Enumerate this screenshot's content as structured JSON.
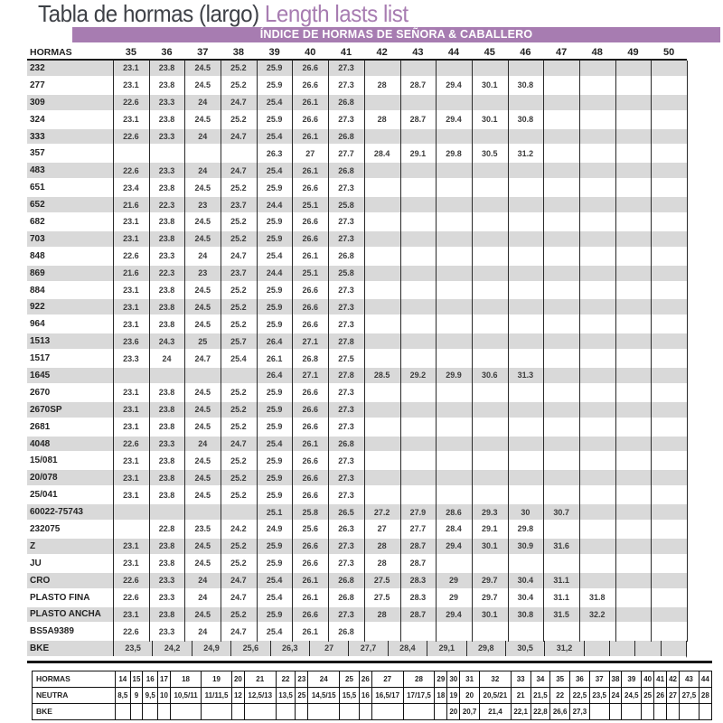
{
  "title": {
    "main": "Tabla de hormas (largo) ",
    "accent": "Length lasts list"
  },
  "banner": "ÍNDICE DE HORMAS DE SEÑORA & CABALLERO",
  "colors": {
    "banner_purple": "#a77cb1",
    "title_dark": "#3e4147",
    "stripe_grey": "#d9d9d9",
    "grid_line": "#2a2a2a"
  },
  "main_table": {
    "label_header": "HORMAS",
    "size_headers": [
      "35",
      "36",
      "37",
      "38",
      "39",
      "40",
      "41",
      "42",
      "43",
      "44",
      "45",
      "46",
      "47",
      "48",
      "49",
      "50"
    ],
    "rows": [
      {
        "label": "232",
        "values": [
          "23.1",
          "23.8",
          "24.5",
          "25.2",
          "25.9",
          "26.6",
          "27.3",
          "",
          "",
          "",
          "",
          "",
          "",
          "",
          "",
          ""
        ]
      },
      {
        "label": "277",
        "values": [
          "23.1",
          "23.8",
          "24.5",
          "25.2",
          "25.9",
          "26.6",
          "27.3",
          "28",
          "28.7",
          "29.4",
          "30.1",
          "30.8",
          "",
          "",
          "",
          ""
        ]
      },
      {
        "label": "309",
        "values": [
          "22.6",
          "23.3",
          "24",
          "24.7",
          "25.4",
          "26.1",
          "26.8",
          "",
          "",
          "",
          "",
          "",
          "",
          "",
          "",
          ""
        ]
      },
      {
        "label": "324",
        "values": [
          "23.1",
          "23.8",
          "24.5",
          "25.2",
          "25.9",
          "26.6",
          "27.3",
          "28",
          "28.7",
          "29.4",
          "30.1",
          "30.8",
          "",
          "",
          "",
          ""
        ]
      },
      {
        "label": "333",
        "values": [
          "22.6",
          "23.3",
          "24",
          "24.7",
          "25.4",
          "26.1",
          "26.8",
          "",
          "",
          "",
          "",
          "",
          "",
          "",
          "",
          ""
        ]
      },
      {
        "label": "357",
        "values": [
          "",
          "",
          "",
          "",
          "26.3",
          "27",
          "27.7",
          "28.4",
          "29.1",
          "29.8",
          "30.5",
          "31.2",
          "",
          "",
          "",
          ""
        ]
      },
      {
        "label": "483",
        "values": [
          "22.6",
          "23.3",
          "24",
          "24.7",
          "25.4",
          "26.1",
          "26.8",
          "",
          "",
          "",
          "",
          "",
          "",
          "",
          "",
          ""
        ]
      },
      {
        "label": "651",
        "values": [
          "23.4",
          "23.8",
          "24.5",
          "25.2",
          "25.9",
          "26.6",
          "27.3",
          "",
          "",
          "",
          "",
          "",
          "",
          "",
          "",
          ""
        ]
      },
      {
        "label": "652",
        "values": [
          "21.6",
          "22.3",
          "23",
          "23.7",
          "24.4",
          "25.1",
          "25.8",
          "",
          "",
          "",
          "",
          "",
          "",
          "",
          "",
          ""
        ]
      },
      {
        "label": "682",
        "values": [
          "23.1",
          "23.8",
          "24.5",
          "25.2",
          "25.9",
          "26.6",
          "27.3",
          "",
          "",
          "",
          "",
          "",
          "",
          "",
          "",
          ""
        ]
      },
      {
        "label": "703",
        "values": [
          "23.1",
          "23.8",
          "24.5",
          "25.2",
          "25.9",
          "26.6",
          "27.3",
          "",
          "",
          "",
          "",
          "",
          "",
          "",
          "",
          ""
        ]
      },
      {
        "label": "848",
        "values": [
          "22.6",
          "23.3",
          "24",
          "24.7",
          "25.4",
          "26.1",
          "26.8",
          "",
          "",
          "",
          "",
          "",
          "",
          "",
          "",
          ""
        ]
      },
      {
        "label": "869",
        "values": [
          "21.6",
          "22.3",
          "23",
          "23.7",
          "24.4",
          "25.1",
          "25.8",
          "",
          "",
          "",
          "",
          "",
          "",
          "",
          "",
          ""
        ]
      },
      {
        "label": "884",
        "values": [
          "23.1",
          "23.8",
          "24.5",
          "25.2",
          "25.9",
          "26.6",
          "27.3",
          "",
          "",
          "",
          "",
          "",
          "",
          "",
          "",
          ""
        ]
      },
      {
        "label": "922",
        "values": [
          "23.1",
          "23.8",
          "24.5",
          "25.2",
          "25.9",
          "26.6",
          "27.3",
          "",
          "",
          "",
          "",
          "",
          "",
          "",
          "",
          ""
        ]
      },
      {
        "label": "964",
        "values": [
          "23.1",
          "23.8",
          "24.5",
          "25.2",
          "25.9",
          "26.6",
          "27.3",
          "",
          "",
          "",
          "",
          "",
          "",
          "",
          "",
          ""
        ]
      },
      {
        "label": "1513",
        "values": [
          "23.6",
          "24.3",
          "25",
          "25.7",
          "26.4",
          "27.1",
          "27.8",
          "",
          "",
          "",
          "",
          "",
          "",
          "",
          "",
          ""
        ]
      },
      {
        "label": "1517",
        "values": [
          "23.3",
          "24",
          "24.7",
          "25.4",
          "26.1",
          "26.8",
          "27.5",
          "",
          "",
          "",
          "",
          "",
          "",
          "",
          "",
          ""
        ]
      },
      {
        "label": "1645",
        "values": [
          "",
          "",
          "",
          "",
          "26.4",
          "27.1",
          "27.8",
          "28.5",
          "29.2",
          "29.9",
          "30.6",
          "31.3",
          "",
          "",
          "",
          ""
        ]
      },
      {
        "label": "2670",
        "values": [
          "23.1",
          "23.8",
          "24.5",
          "25.2",
          "25.9",
          "26.6",
          "27.3",
          "",
          "",
          "",
          "",
          "",
          "",
          "",
          "",
          ""
        ]
      },
      {
        "label": "2670SP",
        "values": [
          "23.1",
          "23.8",
          "24.5",
          "25.2",
          "25.9",
          "26.6",
          "27.3",
          "",
          "",
          "",
          "",
          "",
          "",
          "",
          "",
          ""
        ]
      },
      {
        "label": "2681",
        "values": [
          "23.1",
          "23.8",
          "24.5",
          "25.2",
          "25.9",
          "26.6",
          "27.3",
          "",
          "",
          "",
          "",
          "",
          "",
          "",
          "",
          ""
        ]
      },
      {
        "label": "4048",
        "values": [
          "22.6",
          "23.3",
          "24",
          "24.7",
          "25.4",
          "26.1",
          "26.8",
          "",
          "",
          "",
          "",
          "",
          "",
          "",
          "",
          ""
        ]
      },
      {
        "label": "15/081",
        "values": [
          "23.1",
          "23.8",
          "24.5",
          "25.2",
          "25.9",
          "26.6",
          "27.3",
          "",
          "",
          "",
          "",
          "",
          "",
          "",
          "",
          ""
        ]
      },
      {
        "label": "20/078",
        "values": [
          "23.1",
          "23.8",
          "24.5",
          "25.2",
          "25.9",
          "26.6",
          "27.3",
          "",
          "",
          "",
          "",
          "",
          "",
          "",
          "",
          ""
        ]
      },
      {
        "label": "25/041",
        "values": [
          "23.1",
          "23.8",
          "24.5",
          "25.2",
          "25.9",
          "26.6",
          "27.3",
          "",
          "",
          "",
          "",
          "",
          "",
          "",
          "",
          ""
        ]
      },
      {
        "label": "60022-75743",
        "values": [
          "",
          "",
          "",
          "",
          "25.1",
          "25.8",
          "26.5",
          "27.2",
          "27.9",
          "28.6",
          "29.3",
          "30",
          "30.7",
          "",
          "",
          ""
        ]
      },
      {
        "label": "232075",
        "values": [
          "",
          "22.8",
          "23.5",
          "24.2",
          "24.9",
          "25.6",
          "26.3",
          "27",
          "27.7",
          "28.4",
          "29.1",
          "29.8",
          "",
          "",
          "",
          ""
        ]
      },
      {
        "label": "Z",
        "values": [
          "23.1",
          "23.8",
          "24.5",
          "25.2",
          "25.9",
          "26.6",
          "27.3",
          "28",
          "28.7",
          "29.4",
          "30.1",
          "30.9",
          "31.6",
          "",
          "",
          ""
        ]
      },
      {
        "label": "JU",
        "values": [
          "23.1",
          "23.8",
          "24.5",
          "25.2",
          "25.9",
          "26.6",
          "27.3",
          "28",
          "28.7",
          "",
          "",
          "",
          "",
          "",
          "",
          ""
        ]
      },
      {
        "label": "CRO",
        "values": [
          "22.6",
          "23.3",
          "24",
          "24.7",
          "25.4",
          "26.1",
          "26.8",
          "27.5",
          "28.3",
          "29",
          "29.7",
          "30.4",
          "31.1",
          "",
          "",
          ""
        ]
      },
      {
        "label": "PLASTO FINA",
        "values": [
          "22.6",
          "23.3",
          "24",
          "24.7",
          "25.4",
          "26.1",
          "26.8",
          "27.5",
          "28.3",
          "29",
          "29.7",
          "30.4",
          "31.1",
          "31.8",
          "",
          ""
        ]
      },
      {
        "label": "PLASTO ANCHA",
        "values": [
          "23.1",
          "23.8",
          "24.5",
          "25.2",
          "25.9",
          "26.6",
          "27.3",
          "28",
          "28.7",
          "29.4",
          "30.1",
          "30.8",
          "31.5",
          "32.2",
          "",
          ""
        ]
      },
      {
        "label": "BS5A9389",
        "values": [
          "22.6",
          "23.3",
          "24",
          "24.7",
          "25.4",
          "26.1",
          "26.8",
          "",
          "",
          "",
          "",
          "",
          "",
          "",
          "",
          ""
        ]
      },
      {
        "label": "BKE",
        "values": [
          "23,5",
          "24,2",
          "24,9",
          "25,6",
          "26,3",
          "27",
          "27,7",
          "28,4",
          "29,1",
          "29,8",
          "30,5",
          "31,2",
          "",
          "",
          "",
          ""
        ]
      }
    ]
  },
  "bottom_table": {
    "row_headers": [
      "HORMAS",
      "NEUTRA",
      "BKE"
    ],
    "size_headers": [
      "14",
      "15",
      "16",
      "17",
      "18",
      "19",
      "20",
      "21",
      "22",
      "23",
      "24",
      "25",
      "26",
      "27",
      "28",
      "29",
      "30",
      "31",
      "32",
      "33",
      "34",
      "35",
      "36",
      "37",
      "38",
      "39",
      "40",
      "41",
      "42",
      "43",
      "44"
    ],
    "neutra": [
      "8,5",
      "9",
      "9,5",
      "10",
      "10,5/11",
      "11/11,5",
      "12",
      "12,5/13",
      "13,5",
      "25",
      "14,5/15",
      "15,5",
      "16",
      "16,5/17",
      "17/17,5",
      "18",
      "19",
      "20",
      "20,5/21",
      "21",
      "21,5",
      "22",
      "22,5",
      "23,5",
      "24",
      "24,5",
      "25",
      "26",
      "27",
      "27,5",
      "28"
    ],
    "bke": [
      "",
      "",
      "",
      "",
      "",
      "",
      "",
      "",
      "",
      "",
      "",
      "",
      "",
      "",
      "",
      "",
      "20",
      "20,7",
      "21,4",
      "22,1",
      "22,8",
      "26,6",
      "27,3",
      "",
      "",
      "",
      "",
      "",
      "",
      "",
      ""
    ]
  }
}
